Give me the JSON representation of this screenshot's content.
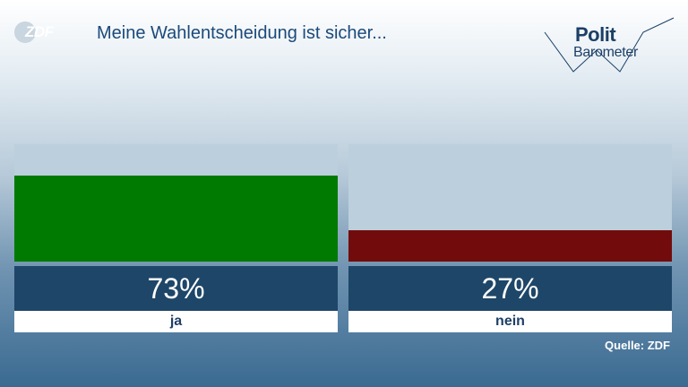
{
  "header": {
    "title": "Meine Wahlentscheidung ist sicher...",
    "logo_left": "ZDF",
    "logo_right_line1": "Polit",
    "logo_right_line2": "Barometer"
  },
  "chart_data": {
    "type": "bar",
    "title": "Meine Wahlentscheidung ist sicher...",
    "categories": [
      "ja",
      "nein"
    ],
    "values": [
      73,
      27
    ],
    "value_labels": [
      "73%",
      "27%"
    ],
    "ylim": [
      0,
      100
    ],
    "colors": [
      "#007a00",
      "#720c0c"
    ],
    "background_color": "#bccfdc"
  },
  "footer": {
    "source": "Quelle: ZDF"
  }
}
